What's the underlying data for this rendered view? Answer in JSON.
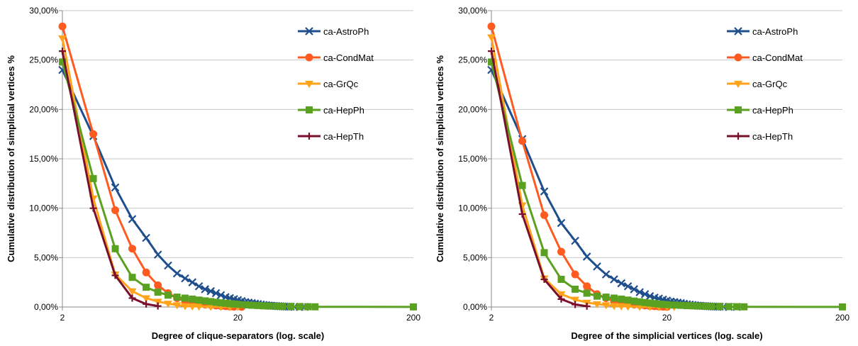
{
  "chart_data": [
    {
      "type": "line",
      "xscale": "log",
      "xlim": [
        2,
        200
      ],
      "ylim": [
        0,
        30
      ],
      "xticks": [
        "2",
        "20",
        "200"
      ],
      "yticks": [
        "0,00%",
        "5,00%",
        "10,00%",
        "15,00%",
        "20,00%",
        "25,00%",
        "30,00%"
      ],
      "xlabel": "Degree of clique-separators (log. scale)",
      "ylabel": "Cumulative distribution of simplicial vertices %",
      "grid": "horizontal",
      "legend_position": "top-right",
      "series": [
        {
          "name": "ca-AstroPh",
          "marker": "x",
          "color": "#1f4e8c",
          "x": [
            2,
            3,
            4,
            5,
            6,
            7,
            8,
            9,
            10,
            11,
            12,
            13,
            14,
            15,
            16,
            17,
            18,
            19,
            20,
            21,
            22,
            23,
            24,
            25,
            26,
            27,
            28,
            29,
            30,
            31,
            32,
            33,
            34,
            35,
            36,
            37,
            38,
            39,
            40,
            42,
            45,
            48
          ],
          "y": [
            24.0,
            17.3,
            12.1,
            8.9,
            7.0,
            5.3,
            4.2,
            3.4,
            2.9,
            2.5,
            2.1,
            1.8,
            1.6,
            1.4,
            1.2,
            1.0,
            0.9,
            0.8,
            0.7,
            0.6,
            0.5,
            0.45,
            0.4,
            0.35,
            0.3,
            0.25,
            0.2,
            0.18,
            0.15,
            0.13,
            0.11,
            0.1,
            0.08,
            0.07,
            0.06,
            0.05,
            0.04,
            0.03,
            0.03,
            0.02,
            0.02,
            0.01
          ]
        },
        {
          "name": "ca-CondMat",
          "marker": "circle",
          "color": "#ff5a1f",
          "x": [
            2,
            3,
            4,
            5,
            6,
            7,
            8,
            9,
            10,
            11,
            12,
            13,
            14,
            15,
            16,
            17,
            18,
            19,
            21
          ],
          "y": [
            28.4,
            17.5,
            9.8,
            5.9,
            3.5,
            2.2,
            1.4,
            0.9,
            0.6,
            0.45,
            0.35,
            0.25,
            0.2,
            0.15,
            0.1,
            0.08,
            0.05,
            0.03,
            0.01
          ]
        },
        {
          "name": "ca-GrQc",
          "marker": "triangle-down",
          "color": "#ffa31a",
          "x": [
            2,
            3,
            4,
            5,
            6,
            7,
            8,
            9,
            10,
            11,
            12,
            14,
            16,
            18,
            20
          ],
          "y": [
            27.2,
            11.0,
            3.3,
            1.6,
            0.9,
            0.55,
            0.35,
            0.2,
            0.1,
            0.07,
            0.05,
            0.03,
            0.02,
            0.01,
            0.01
          ]
        },
        {
          "name": "ca-HepPh",
          "marker": "square",
          "color": "#5ba121",
          "x": [
            2,
            3,
            4,
            5,
            6,
            7,
            8,
            9,
            10,
            11,
            12,
            13,
            14,
            15,
            16,
            17,
            18,
            19,
            20,
            22,
            24,
            26,
            28,
            30,
            33,
            36,
            40,
            45,
            50,
            55,
            200
          ],
          "y": [
            24.8,
            13.0,
            5.9,
            3.0,
            2.0,
            1.5,
            1.2,
            1.0,
            0.9,
            0.8,
            0.7,
            0.62,
            0.55,
            0.48,
            0.42,
            0.38,
            0.33,
            0.3,
            0.27,
            0.22,
            0.18,
            0.15,
            0.12,
            0.1,
            0.08,
            0.06,
            0.05,
            0.04,
            0.03,
            0.02,
            0.01
          ]
        },
        {
          "name": "ca-HepTh",
          "marker": "plus",
          "color": "#7a0f2b",
          "x": [
            2,
            3,
            4,
            5,
            6,
            7
          ],
          "y": [
            25.9,
            10.0,
            3.2,
            0.9,
            0.3,
            0.1
          ]
        }
      ]
    },
    {
      "type": "line",
      "xscale": "log",
      "xlim": [
        2,
        200
      ],
      "ylim": [
        0,
        30
      ],
      "xticks": [
        "2",
        "20",
        "200"
      ],
      "yticks": [
        "0,00%",
        "5,00%",
        "10,00%",
        "15,00%",
        "20,00%",
        "25,00%",
        "30,00%"
      ],
      "xlabel": "Degree of the simplicial vertices (log. scale)",
      "ylabel": "Cumulative distribution of simplicial vertices %",
      "grid": "horizontal",
      "legend_position": "top-right",
      "series": [
        {
          "name": "ca-AstroPh",
          "marker": "x",
          "color": "#1f4e8c",
          "x": [
            2,
            3,
            4,
            5,
            6,
            7,
            8,
            9,
            10,
            11,
            12,
            13,
            14,
            15,
            16,
            17,
            18,
            19,
            20,
            21,
            22,
            23,
            24,
            25,
            26,
            27,
            28,
            29,
            30,
            31,
            32,
            33,
            34,
            35,
            36,
            37,
            38,
            39,
            40,
            42,
            45,
            50
          ],
          "y": [
            24.0,
            17.0,
            11.7,
            8.5,
            6.7,
            5.1,
            4.1,
            3.3,
            2.8,
            2.4,
            2.1,
            1.8,
            1.5,
            1.3,
            1.1,
            0.95,
            0.85,
            0.75,
            0.65,
            0.55,
            0.5,
            0.45,
            0.4,
            0.33,
            0.28,
            0.24,
            0.2,
            0.17,
            0.14,
            0.12,
            0.1,
            0.09,
            0.08,
            0.07,
            0.06,
            0.05,
            0.04,
            0.03,
            0.03,
            0.02,
            0.02,
            0.01
          ]
        },
        {
          "name": "ca-CondMat",
          "marker": "circle",
          "color": "#ff5a1f",
          "x": [
            2,
            3,
            4,
            5,
            6,
            7,
            8,
            9,
            10,
            11,
            12,
            13,
            14,
            15,
            16,
            17,
            18,
            19,
            20
          ],
          "y": [
            28.4,
            16.8,
            9.3,
            5.6,
            3.3,
            2.1,
            1.3,
            0.9,
            0.6,
            0.45,
            0.35,
            0.25,
            0.2,
            0.15,
            0.1,
            0.08,
            0.05,
            0.03,
            0.01
          ]
        },
        {
          "name": "ca-GrQc",
          "marker": "triangle-down",
          "color": "#ffa31a",
          "x": [
            2,
            3,
            4,
            5,
            6,
            7,
            8,
            9,
            10,
            11,
            12,
            14,
            16,
            18,
            20,
            22
          ],
          "y": [
            27.3,
            10.3,
            2.9,
            1.3,
            0.75,
            0.45,
            0.3,
            0.2,
            0.12,
            0.08,
            0.05,
            0.03,
            0.02,
            0.01,
            0.01,
            0.01
          ]
        },
        {
          "name": "ca-HepPh",
          "marker": "square",
          "color": "#5ba121",
          "x": [
            2,
            3,
            4,
            5,
            6,
            7,
            8,
            9,
            10,
            11,
            12,
            13,
            14,
            15,
            16,
            17,
            18,
            19,
            20,
            22,
            24,
            26,
            28,
            30,
            33,
            36,
            40,
            45,
            50,
            55,
            200
          ],
          "y": [
            24.8,
            12.3,
            5.5,
            2.8,
            1.8,
            1.4,
            1.1,
            1.0,
            0.9,
            0.8,
            0.7,
            0.6,
            0.52,
            0.45,
            0.4,
            0.35,
            0.3,
            0.27,
            0.24,
            0.2,
            0.17,
            0.14,
            0.12,
            0.1,
            0.08,
            0.06,
            0.05,
            0.04,
            0.03,
            0.02,
            0.01
          ]
        },
        {
          "name": "ca-HepTh",
          "marker": "plus",
          "color": "#7a0f2b",
          "x": [
            2,
            3,
            4,
            5,
            6,
            7
          ],
          "y": [
            25.9,
            9.4,
            2.8,
            0.8,
            0.25,
            0.08
          ]
        }
      ]
    }
  ]
}
